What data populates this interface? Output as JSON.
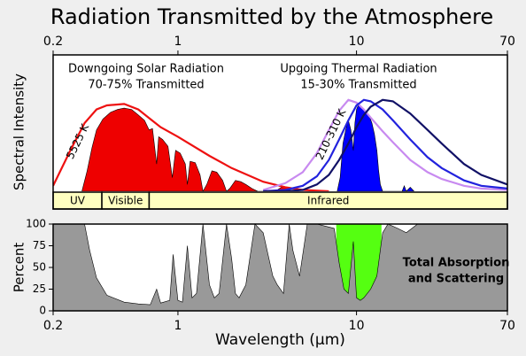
{
  "chart_data": [
    {
      "type": "area",
      "title": "Radiation Transmitted by the Atmosphere",
      "ylabel": "Spectral Intensity",
      "log_x": true,
      "xlim": [
        0.2,
        70
      ],
      "xticks": [
        0.2,
        1,
        10,
        70
      ],
      "ylim": [
        0,
        1
      ],
      "annotations": [
        "Downgoing Solar Radiation",
        "70-75% Transmitted",
        "Upgoing Thermal Radiation",
        "15-30% Transmitted",
        "5525 K",
        "210-310 K"
      ],
      "bands": [
        {
          "label": "UV",
          "range": [
            0.2,
            0.375
          ]
        },
        {
          "label": "Visible",
          "range": [
            0.375,
            0.69
          ]
        },
        {
          "label": "Infrared",
          "range": [
            0.69,
            70
          ]
        }
      ],
      "series": [
        {
          "style": "area",
          "color": "#ee0000",
          "x": [
            0.29,
            0.31,
            0.33,
            0.35,
            0.38,
            0.42,
            0.46,
            0.5,
            0.55,
            0.6,
            0.65,
            0.69,
            0.72,
            0.76,
            0.78,
            0.82,
            0.88,
            0.93,
            0.97,
            1.03,
            1.1,
            1.13,
            1.17,
            1.25,
            1.33,
            1.38,
            1.45,
            1.55,
            1.65,
            1.78,
            1.87,
            1.95,
            2.1,
            2.25,
            2.4,
            2.6,
            2.8,
            3.5,
            3.8,
            4.1,
            4.3
          ],
          "values": [
            0,
            0.15,
            0.32,
            0.45,
            0.53,
            0.58,
            0.6,
            0.61,
            0.6,
            0.56,
            0.52,
            0.45,
            0.46,
            0.2,
            0.4,
            0.38,
            0.33,
            0.1,
            0.3,
            0.28,
            0.2,
            0.05,
            0.22,
            0.21,
            0.12,
            0,
            0.05,
            0.15,
            0.14,
            0.08,
            0,
            0.02,
            0.08,
            0.07,
            0.05,
            0.02,
            0,
            0,
            0.03,
            0.03,
            0
          ]
        },
        {
          "style": "line",
          "color": "#ee1111",
          "x": [
            0.2,
            0.25,
            0.3,
            0.35,
            0.4,
            0.5,
            0.6,
            0.7,
            0.8,
            1,
            1.5,
            2,
            3,
            4,
            5,
            7
          ],
          "values": [
            0.04,
            0.3,
            0.5,
            0.6,
            0.63,
            0.64,
            0.6,
            0.53,
            0.47,
            0.4,
            0.26,
            0.17,
            0.07,
            0.03,
            0.01,
            0
          ]
        },
        {
          "style": "area",
          "color": "#0000ff",
          "x": [
            7.8,
            8.1,
            8.4,
            8.7,
            9,
            9.3,
            9.6,
            9.8,
            10,
            10.3,
            10.6,
            11,
            11.4,
            11.8,
            12.2,
            12.6,
            13,
            13.3,
            13.6,
            14,
            18,
            18.5,
            19,
            20,
            21
          ],
          "values": [
            0,
            0.1,
            0.35,
            0.45,
            0.52,
            0.45,
            0.3,
            0.5,
            0.6,
            0.64,
            0.62,
            0.6,
            0.58,
            0.55,
            0.5,
            0.42,
            0.3,
            0.15,
            0.05,
            0,
            0,
            0.04,
            0,
            0.03,
            0
          ]
        },
        {
          "style": "line",
          "color": "#c88af0",
          "x": [
            3,
            4,
            5,
            6,
            7,
            8,
            9,
            10,
            11,
            12,
            14,
            16,
            20,
            25,
            30,
            40,
            50,
            70
          ],
          "values": [
            0.01,
            0.06,
            0.14,
            0.28,
            0.45,
            0.59,
            0.67,
            0.65,
            0.6,
            0.54,
            0.44,
            0.36,
            0.23,
            0.14,
            0.09,
            0.04,
            0.02,
            0.01
          ]
        },
        {
          "style": "line",
          "color": "#2222dd",
          "x": [
            3,
            4,
            5,
            6,
            7,
            8,
            9,
            10,
            11,
            12,
            14,
            16,
            20,
            25,
            30,
            40,
            50,
            70
          ],
          "values": [
            0,
            0.01,
            0.04,
            0.11,
            0.23,
            0.38,
            0.52,
            0.63,
            0.67,
            0.66,
            0.6,
            0.52,
            0.38,
            0.25,
            0.17,
            0.08,
            0.04,
            0.02
          ]
        },
        {
          "style": "line",
          "color": "#111166",
          "x": [
            3,
            4,
            5,
            6,
            7,
            8,
            9,
            10,
            11,
            12,
            14,
            16,
            20,
            25,
            30,
            40,
            50,
            70
          ],
          "values": [
            0,
            0,
            0.01,
            0.05,
            0.12,
            0.23,
            0.35,
            0.47,
            0.56,
            0.62,
            0.67,
            0.66,
            0.57,
            0.45,
            0.35,
            0.2,
            0.12,
            0.05
          ]
        }
      ]
    },
    {
      "type": "area",
      "ylabel": "Percent",
      "xlabel": "Wavelength (µm)",
      "log_x": true,
      "xlim": [
        0.2,
        70
      ],
      "xticks": [
        0.2,
        1,
        10,
        70
      ],
      "ylim": [
        0,
        100
      ],
      "yticks": [
        0,
        25,
        50,
        75,
        100
      ],
      "annotations": [
        "Total Absorption",
        "and Scattering"
      ],
      "highlight": {
        "range": [
          7.7,
          13.8
        ],
        "color": "#55ff11"
      },
      "series": [
        {
          "style": "area",
          "color": "#999999",
          "x": [
            0.2,
            0.3,
            0.32,
            0.35,
            0.4,
            0.5,
            0.6,
            0.7,
            0.76,
            0.8,
            0.9,
            0.94,
            1.0,
            1.06,
            1.13,
            1.2,
            1.27,
            1.38,
            1.5,
            1.6,
            1.7,
            1.87,
            2.0,
            2.1,
            2.2,
            2.4,
            2.7,
            3.0,
            3.4,
            3.6,
            3.9,
            4.2,
            4.4,
            4.8,
            5.3,
            6,
            7.5,
            8,
            8.5,
            9,
            9.6,
            10,
            10.5,
            11,
            12,
            13,
            14,
            15,
            17,
            19,
            22,
            70
          ],
          "values": [
            100,
            100,
            70,
            38,
            18,
            10,
            8,
            7,
            25,
            9,
            12,
            65,
            12,
            10,
            75,
            15,
            20,
            100,
            30,
            15,
            20,
            100,
            60,
            20,
            15,
            30,
            100,
            90,
            40,
            30,
            20,
            100,
            70,
            40,
            100,
            100,
            95,
            55,
            25,
            20,
            80,
            15,
            12,
            15,
            25,
            40,
            90,
            100,
            95,
            90,
            100,
            100
          ]
        }
      ]
    }
  ]
}
